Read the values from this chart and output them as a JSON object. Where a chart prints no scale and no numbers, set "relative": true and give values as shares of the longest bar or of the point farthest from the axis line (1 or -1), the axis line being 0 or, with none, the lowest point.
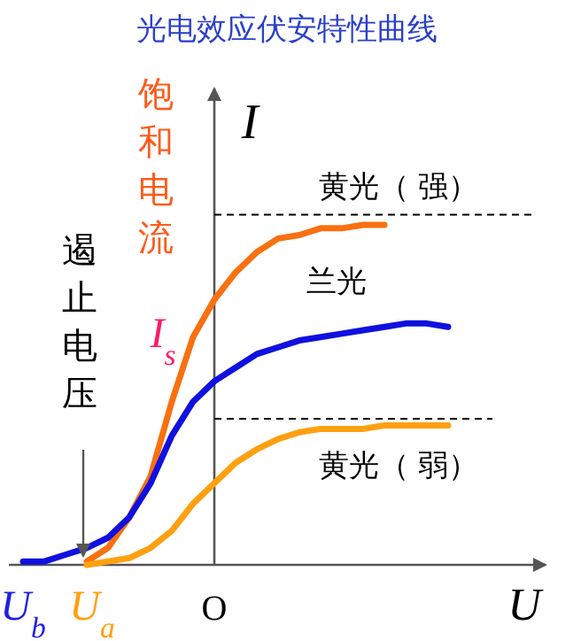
{
  "chart_data": {
    "type": "line",
    "title": "光电效应伏安特性曲线",
    "xlabel": "U",
    "ylabel": "I",
    "relative": true,
    "categories": [
      null,
      null,
      null,
      null,
      null,
      null,
      null,
      null,
      null,
      null,
      null,
      null,
      null,
      null,
      null,
      null,
      null,
      null,
      null,
      null,
      null
    ],
    "series": [
      {
        "name": "黄光（ 强）",
        "color": "#f97010",
        "values": [
          null,
          null,
          null,
          0.01,
          0.05,
          0.14,
          0.26,
          0.48,
          0.67,
          0.78,
          0.86,
          0.92,
          0.96,
          0.97,
          0.99,
          0.99,
          1.0,
          1.0,
          null,
          null,
          null
        ]
      },
      {
        "name": "兰光",
        "color": "#1010e0",
        "values": [
          0.01,
          0.01,
          0.03,
          0.05,
          0.08,
          0.14,
          0.24,
          0.38,
          0.48,
          0.54,
          0.58,
          0.62,
          0.64,
          0.66,
          0.67,
          0.68,
          0.69,
          0.7,
          0.71,
          0.71,
          0.7
        ]
      },
      {
        "name": "黄光（ 弱）",
        "color": "#ffa010",
        "values": [
          null,
          null,
          null,
          0,
          0.01,
          0.02,
          0.05,
          0.1,
          0.18,
          0.24,
          0.3,
          0.34,
          0.37,
          0.39,
          0.4,
          0.4,
          0.4,
          0.41,
          0.41,
          0.41,
          0.41
        ]
      }
    ],
    "ref_lines": [
      {
        "axis": "y",
        "value": 1.03,
        "color": "#000000",
        "line_style": "dashed"
      },
      {
        "axis": "y",
        "value": 0.43,
        "color": "#000000",
        "line_style": "dashed"
      }
    ],
    "annotations": [
      "饱和电流",
      "I$_{s}$",
      "遏止电压",
      "U$_{b}$",
      "U$_{a}$",
      "O"
    ]
  }
}
